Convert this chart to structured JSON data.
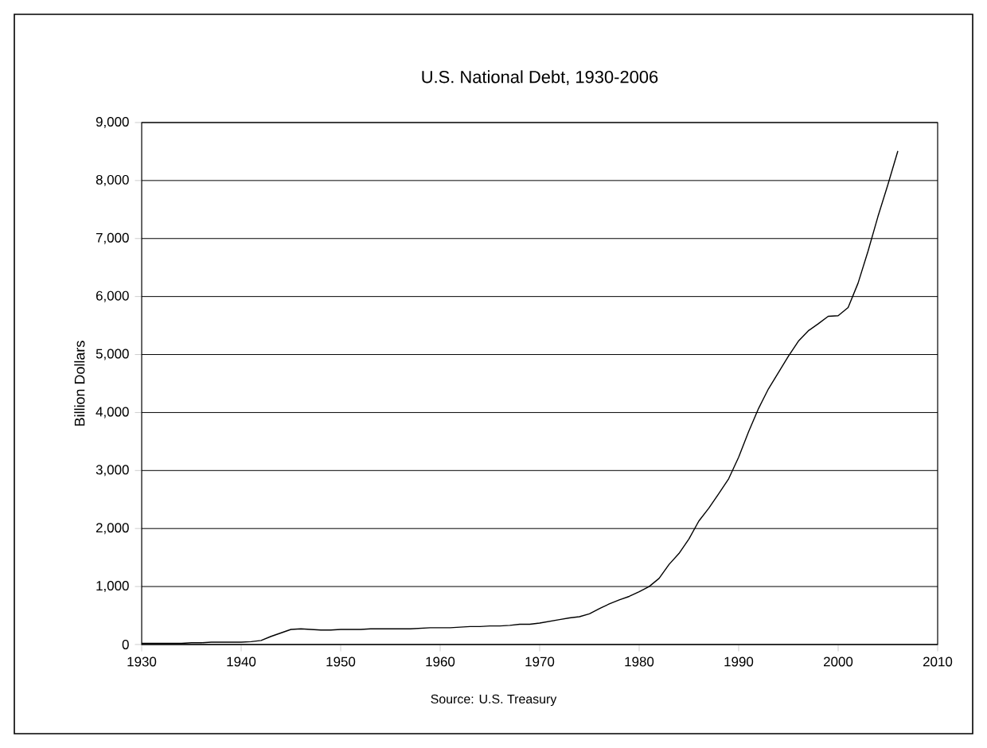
{
  "chart_data": {
    "type": "line",
    "title": "U.S. National Debt, 1930-2006",
    "ylabel": "Billion Dollars",
    "annotations": [
      "Source: U.S. Treasury"
    ],
    "x": [
      1930,
      1931,
      1932,
      1933,
      1934,
      1935,
      1936,
      1937,
      1938,
      1939,
      1940,
      1941,
      1942,
      1943,
      1944,
      1945,
      1946,
      1947,
      1948,
      1949,
      1950,
      1951,
      1952,
      1953,
      1954,
      1955,
      1956,
      1957,
      1958,
      1959,
      1960,
      1961,
      1962,
      1963,
      1964,
      1965,
      1966,
      1967,
      1968,
      1969,
      1970,
      1971,
      1972,
      1973,
      1974,
      1975,
      1976,
      1977,
      1978,
      1979,
      1980,
      1981,
      1982,
      1983,
      1984,
      1985,
      1986,
      1987,
      1988,
      1989,
      1990,
      1991,
      1992,
      1993,
      1994,
      1995,
      1996,
      1997,
      1998,
      1999,
      2000,
      2001,
      2002,
      2003,
      2004,
      2005,
      2006
    ],
    "series": [
      {
        "color": "#000000",
        "values": [
          20,
          20,
          20,
          20,
          20,
          30,
          30,
          40,
          40,
          40,
          40,
          50,
          70,
          140,
          200,
          260,
          270,
          260,
          250,
          250,
          260,
          260,
          260,
          270,
          270,
          270,
          270,
          270,
          280,
          290,
          290,
          290,
          300,
          310,
          310,
          320,
          320,
          330,
          350,
          350,
          370,
          400,
          430,
          460,
          480,
          530,
          620,
          700,
          770,
          830,
          910,
          1000,
          1140,
          1380,
          1570,
          1820,
          2130,
          2350,
          2600,
          2860,
          3230,
          3670,
          4070,
          4410,
          4690,
          4970,
          5230,
          5410,
          5530,
          5660,
          5670,
          5810,
          6230,
          6780,
          7380,
          7930,
          8510
        ]
      }
    ],
    "xlim": [
      1930,
      2010
    ],
    "xticks": [
      1930,
      1940,
      1950,
      1960,
      1970,
      1980,
      1990,
      2000,
      2010
    ],
    "ylim": [
      0,
      9000
    ],
    "yticks": [
      {
        "value": 0,
        "label": "0"
      },
      {
        "value": 1000,
        "label": "1,000"
      },
      {
        "value": 2000,
        "label": "2,000"
      },
      {
        "value": 3000,
        "label": "3,000"
      },
      {
        "value": 4000,
        "label": "4,000"
      },
      {
        "value": 5000,
        "label": "5,000"
      },
      {
        "value": 6000,
        "label": "6,000"
      },
      {
        "value": 7000,
        "label": "7,000"
      },
      {
        "value": 8000,
        "label": "8,000"
      },
      {
        "value": 9000,
        "label": "9,000"
      }
    ],
    "grid": "y",
    "marker": "none",
    "line_style": "solid"
  }
}
